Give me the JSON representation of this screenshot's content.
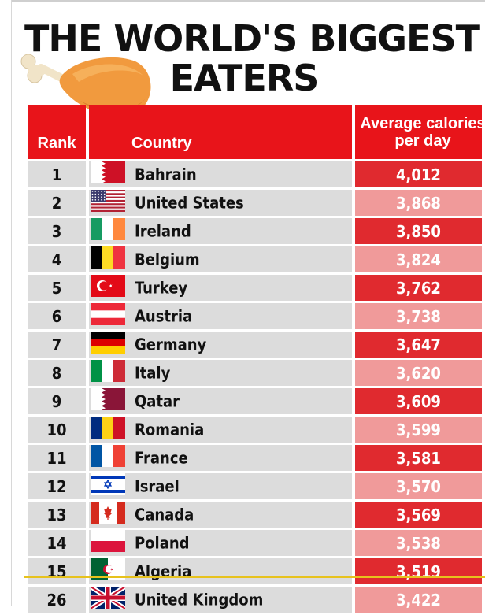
{
  "title": {
    "line1": "THE WORLD'S BIGGEST",
    "line2": "EATERS"
  },
  "chart_data": {
    "type": "table",
    "columns": [
      "Rank",
      "Country",
      "Average calories per day"
    ],
    "rows": [
      {
        "rank": "1",
        "country": "Bahrain",
        "calories": "4,012",
        "value": 4012,
        "flag": "bahrain-flag-icon"
      },
      {
        "rank": "2",
        "country": "United States",
        "calories": "3,868",
        "value": 3868,
        "flag": "us-flag-icon"
      },
      {
        "rank": "3",
        "country": "Ireland",
        "calories": "3,850",
        "value": 3850,
        "flag": "ireland-flag-icon"
      },
      {
        "rank": "4",
        "country": "Belgium",
        "calories": "3,824",
        "value": 3824,
        "flag": "belgium-flag-icon"
      },
      {
        "rank": "5",
        "country": "Turkey",
        "calories": "3,762",
        "value": 3762,
        "flag": "turkey-flag-icon"
      },
      {
        "rank": "6",
        "country": "Austria",
        "calories": "3,738",
        "value": 3738,
        "flag": "austria-flag-icon"
      },
      {
        "rank": "7",
        "country": "Germany",
        "calories": "3,647",
        "value": 3647,
        "flag": "germany-flag-icon"
      },
      {
        "rank": "8",
        "country": "Italy",
        "calories": "3,620",
        "value": 3620,
        "flag": "italy-flag-icon"
      },
      {
        "rank": "9",
        "country": "Qatar",
        "calories": "3,609",
        "value": 3609,
        "flag": "qatar-flag-icon"
      },
      {
        "rank": "10",
        "country": "Romania",
        "calories": "3,599",
        "value": 3599,
        "flag": "romania-flag-icon"
      },
      {
        "rank": "11",
        "country": "France",
        "calories": "3,581",
        "value": 3581,
        "flag": "france-flag-icon"
      },
      {
        "rank": "12",
        "country": "Israel",
        "calories": "3,570",
        "value": 3570,
        "flag": "israel-flag-icon"
      },
      {
        "rank": "13",
        "country": "Canada",
        "calories": "3,569",
        "value": 3569,
        "flag": "canada-flag-icon"
      },
      {
        "rank": "14",
        "country": "Poland",
        "calories": "3,538",
        "value": 3538,
        "flag": "poland-flag-icon"
      },
      {
        "rank": "15",
        "country": "Algeria",
        "calories": "3,519",
        "value": 3519,
        "flag": "algeria-flag-icon"
      },
      {
        "rank": "26",
        "country": "United Kingdom",
        "calories": "3,422",
        "value": 3422,
        "flag": "uk-flag-icon"
      }
    ]
  },
  "colors": {
    "header_red": "#e8141a",
    "value_dark": "#e02a2f",
    "value_light": "#f09a9a",
    "row_gray": "#dcdcdc",
    "divider": "#e7c21d"
  },
  "decoration": {
    "icon": "chicken-drumstick-icon"
  }
}
